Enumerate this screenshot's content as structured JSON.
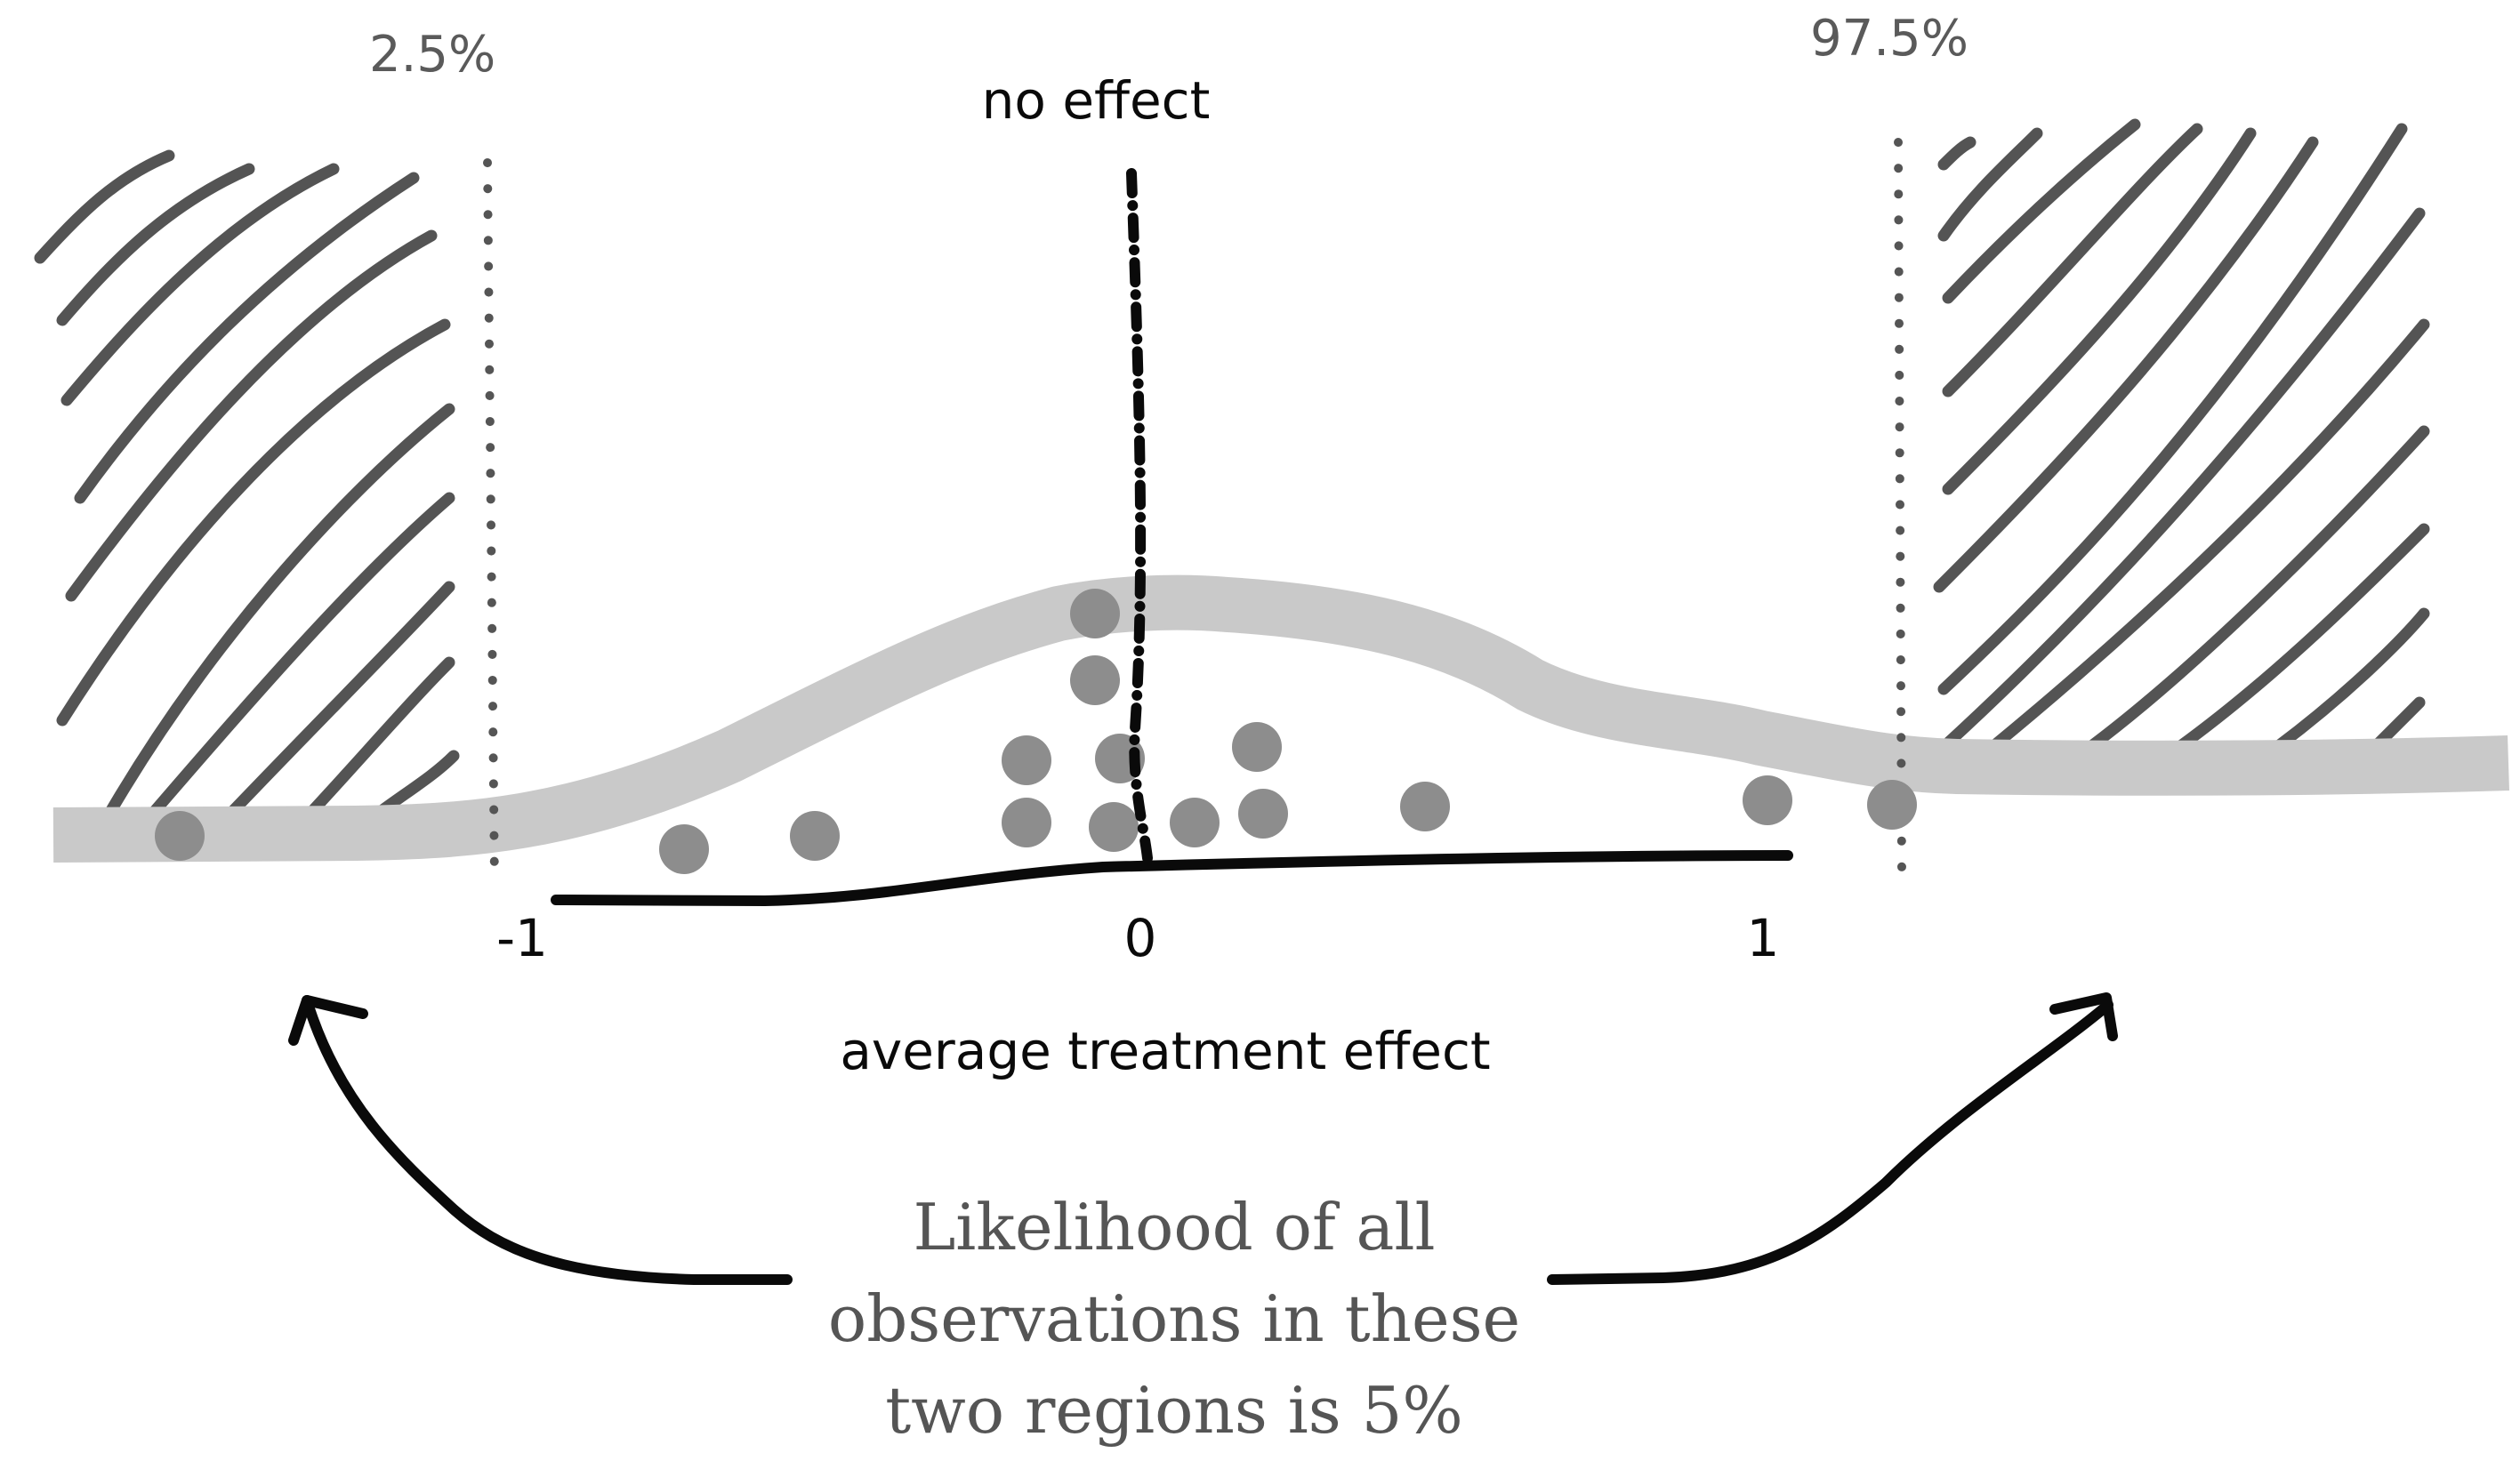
{
  "labels": {
    "left_percentile": "2.5%",
    "right_percentile": "97.5%",
    "no_effect": "no effect",
    "x_axis_title": "average treatment effect",
    "caption_line_1": "Likelihood of all",
    "caption_line_2": "observations in these",
    "caption_line_3": "two regions is 5%"
  },
  "axis": {
    "ticks": [
      {
        "value": -1,
        "label": "-1"
      },
      {
        "value": 0,
        "label": "0"
      },
      {
        "value": 1,
        "label": "1"
      }
    ]
  },
  "observations": [
    -1.55,
    -0.74,
    -0.53,
    -0.19,
    -0.19,
    -0.08,
    -0.08,
    -0.04,
    -0.05,
    0.08,
    0.18,
    0.19,
    0.45,
    1.0,
    1.2
  ],
  "colors": {
    "hatch": "#545454",
    "density_band": "#c9c9c9",
    "observation_dot": "#8d8d8d",
    "ink": "#0a0a0a",
    "caption_text": "#555555",
    "percentile_text": "#5a5a5a",
    "dotted_boundary": "#555555"
  }
}
